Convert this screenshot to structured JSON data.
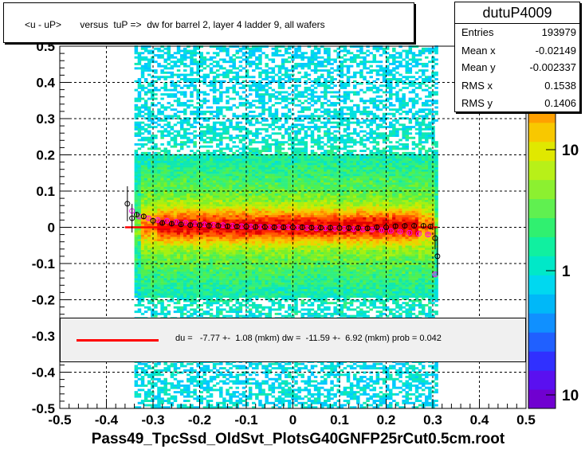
{
  "title": "<u - uP>       versus  tuP =>  dw for barrel 2, layer 4 ladder 9, all wafers",
  "stats": {
    "name": "dutuP4009",
    "rows": [
      {
        "label": "Entries",
        "value": "193979"
      },
      {
        "label": "Mean x",
        "value": "-0.02149"
      },
      {
        "label": "Mean y",
        "value": "-0.002337"
      },
      {
        "label": "RMS x",
        "value": "0.1538"
      },
      {
        "label": "RMS y",
        "value": "0.1406"
      }
    ]
  },
  "fit": {
    "text": "du =   -7.77 +-  1.08 (mkm) dw =  -11.59 +-  6.92 (mkm) prob = 0.042",
    "color": "#ff0000"
  },
  "chart_data": {
    "type": "heatmap",
    "xlabel": "Pass49_TpcSsd_OldSvt_PlotsG40GNFP25rCut0.5cm.root",
    "ylabel": "",
    "xlim": [
      -0.5,
      0.5
    ],
    "ylim": [
      -0.5,
      0.5
    ],
    "x_ticks": [
      "-0.5",
      "-0.4",
      "-0.3",
      "-0.2",
      "-0.1",
      "0",
      "0.1",
      "0.2",
      "0.3",
      "0.4",
      "0.5"
    ],
    "y_ticks": [
      "-0.5",
      "-0.4",
      "-0.3",
      "-0.2",
      "-0.1",
      "0",
      "0.1",
      "0.2",
      "0.3",
      "0.4",
      "0.5"
    ],
    "colorbar_ticks": [
      "10",
      "1",
      "10"
    ],
    "grid": true,
    "density_region": {
      "x": [
        -0.34,
        0.31
      ],
      "y": [
        -0.5,
        0.5
      ]
    },
    "profile_black": {
      "x": [
        -0.355,
        -0.345,
        -0.335,
        -0.32,
        -0.3,
        -0.28,
        -0.26,
        -0.24,
        -0.22,
        -0.2,
        -0.18,
        -0.16,
        -0.14,
        -0.12,
        -0.1,
        -0.08,
        -0.06,
        -0.04,
        -0.02,
        0.0,
        0.02,
        0.04,
        0.06,
        0.08,
        0.1,
        0.12,
        0.14,
        0.16,
        0.18,
        0.2,
        0.22,
        0.24,
        0.26,
        0.28,
        0.295,
        0.305,
        0.31
      ],
      "y": [
        0.065,
        0.025,
        0.035,
        0.03,
        0.018,
        0.012,
        0.01,
        0.008,
        0.006,
        0.006,
        0.004,
        0.004,
        0.003,
        0.002,
        0.002,
        0.001,
        0.001,
        0.0,
        0.0,
        0.0,
        0.0,
        -0.001,
        -0.001,
        -0.001,
        -0.002,
        -0.002,
        -0.002,
        -0.003,
        0.0,
        0.0,
        0.003,
        0.004,
        0.004,
        0.004,
        0.002,
        -0.03,
        -0.08
      ]
    },
    "profile_magenta": {
      "x": [
        -0.345,
        -0.33,
        -0.31,
        -0.29,
        -0.27,
        -0.25,
        -0.23,
        -0.21,
        -0.19,
        -0.17,
        -0.15,
        -0.13,
        -0.11,
        -0.09,
        -0.07,
        -0.05,
        -0.03,
        -0.01,
        0.01,
        0.03,
        0.05,
        0.07,
        0.09,
        0.11,
        0.13,
        0.15,
        0.17,
        0.19,
        0.21,
        0.23,
        0.25,
        0.27,
        0.29,
        0.305
      ],
      "y": [
        0.045,
        0.03,
        0.025,
        0.02,
        0.018,
        0.015,
        0.013,
        0.01,
        0.008,
        0.007,
        0.006,
        0.004,
        0.003,
        0.002,
        0.001,
        0.0,
        0.0,
        0.0,
        -0.001,
        -0.002,
        -0.003,
        -0.003,
        -0.004,
        -0.004,
        -0.005,
        -0.006,
        -0.006,
        -0.008,
        -0.01,
        -0.012,
        -0.015,
        -0.018,
        -0.02,
        -0.13
      ]
    },
    "fit_line": {
      "x": [
        -0.36,
        0.31
      ],
      "y": [
        0.0,
        0.0
      ]
    }
  }
}
